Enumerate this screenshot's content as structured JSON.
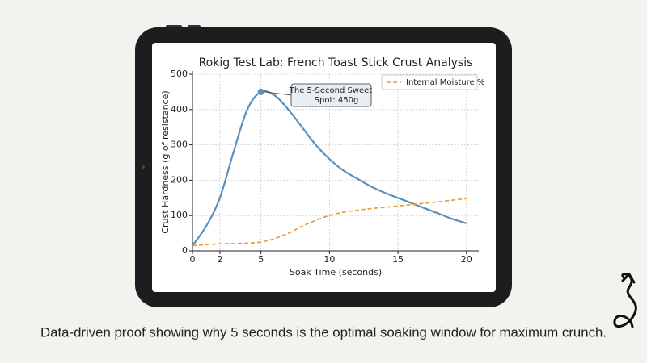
{
  "chart_data": {
    "type": "line",
    "title": "Rokig Test Lab: French Toast Stick Crust Analysis",
    "x_label": "Soak Time (seconds)",
    "y_label": "Crust Hardness (g of resistance)",
    "xlim": [
      0,
      20.9
    ],
    "xticks": [
      0,
      2,
      5,
      10,
      15,
      20
    ],
    "ylim": [
      0,
      500
    ],
    "yticks": [
      0,
      100,
      200,
      300,
      400,
      500
    ],
    "grid": true,
    "legend": "upper right",
    "series": [
      {
        "color": "#5b8fbb",
        "dash": false,
        "x": [
          0,
          1,
          2,
          3,
          4,
          5,
          6,
          7,
          8,
          9,
          10,
          11,
          12,
          13,
          14,
          15,
          16,
          17,
          18,
          19,
          20
        ],
        "values": [
          15,
          70,
          150,
          280,
          400,
          450,
          440,
          400,
          350,
          300,
          260,
          228,
          205,
          183,
          165,
          150,
          135,
          120,
          105,
          90,
          78
        ]
      },
      {
        "name": "Internal Moisture %",
        "color": "#e39b34",
        "dash": true,
        "x": [
          0,
          2,
          5,
          7,
          8,
          10,
          12,
          15,
          17,
          20
        ],
        "values": [
          15,
          20,
          25,
          50,
          70,
          100,
          115,
          127,
          135,
          148
        ]
      }
    ],
    "annotation": {
      "lines": [
        "The 5-Second Sweet",
        "Spot: 450g"
      ],
      "x": 5,
      "y": 450
    }
  },
  "caption": "Data-driven proof showing why 5 seconds is the optimal soaking window for maximum crunch."
}
